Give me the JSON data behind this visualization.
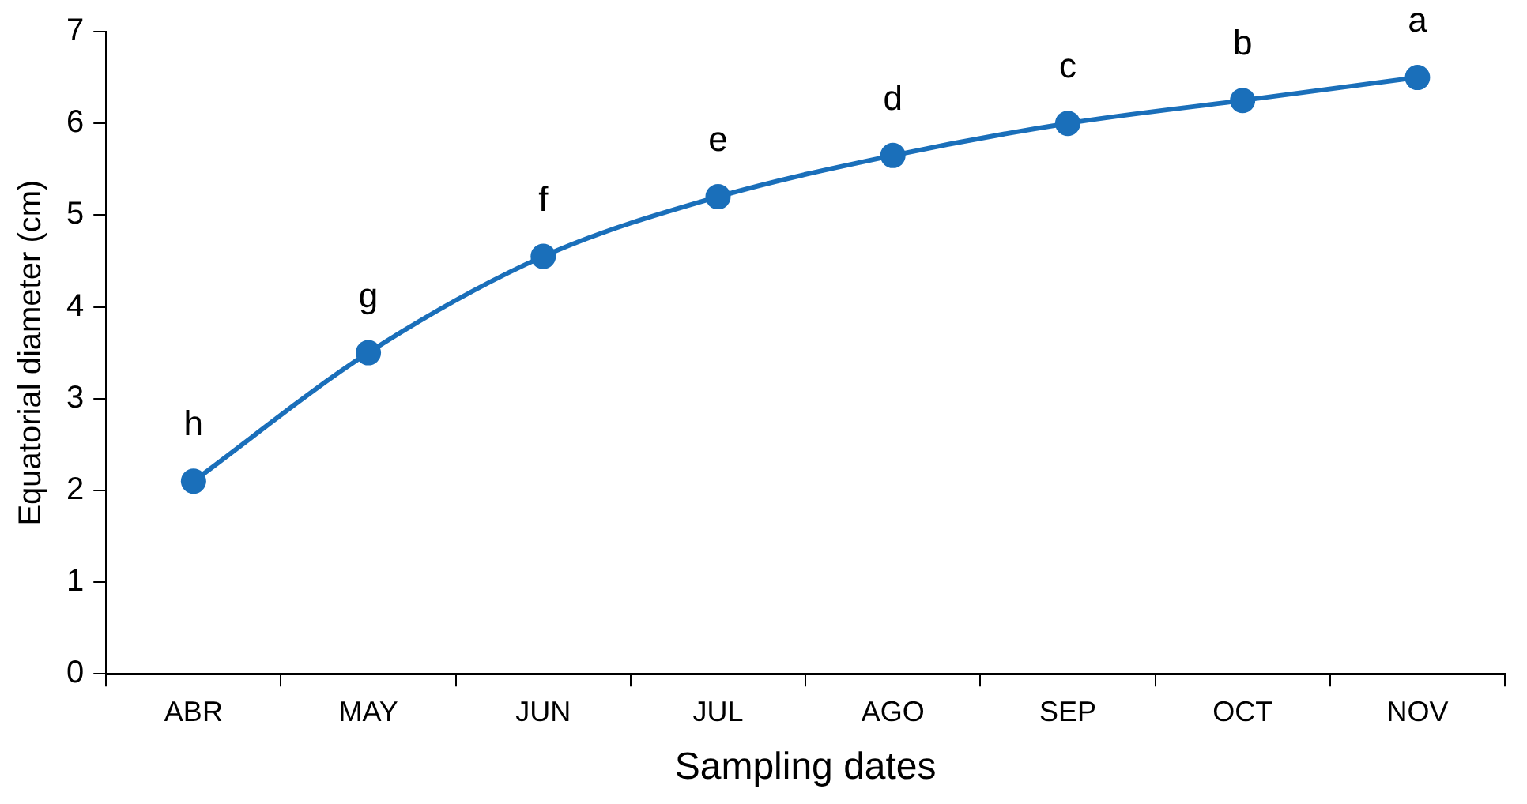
{
  "chart_data": {
    "type": "line",
    "xlabel": "Sampling dates",
    "ylabel": "Equatorial diameter (cm)",
    "categories": [
      "ABR",
      "MAY",
      "JUN",
      "JUL",
      "AGO",
      "SEP",
      "OCT",
      "NOV"
    ],
    "series": [
      {
        "color": "#1a6fba",
        "values": [
          2.1,
          3.5,
          4.55,
          5.2,
          5.65,
          6.0,
          6.25,
          6.5
        ]
      }
    ],
    "ylim": [
      0,
      7
    ],
    "yticks": [
      0,
      1,
      2,
      3,
      4,
      5,
      6,
      7
    ],
    "grid": false,
    "legend": false,
    "marker": "circle",
    "line_style": "solid",
    "annotations": [
      {
        "text": "h",
        "x": "ABR",
        "y": 2.1
      },
      {
        "text": "g",
        "x": "MAY",
        "y": 3.5
      },
      {
        "text": "f",
        "x": "JUN",
        "y": 4.55
      },
      {
        "text": "e",
        "x": "JUL",
        "y": 5.2
      },
      {
        "text": "d",
        "x": "AGO",
        "y": 5.65
      },
      {
        "text": "c",
        "x": "SEP",
        "y": 6.0
      },
      {
        "text": "b",
        "x": "OCT",
        "y": 6.25
      },
      {
        "text": "a",
        "x": "NOV",
        "y": 6.5
      }
    ]
  }
}
